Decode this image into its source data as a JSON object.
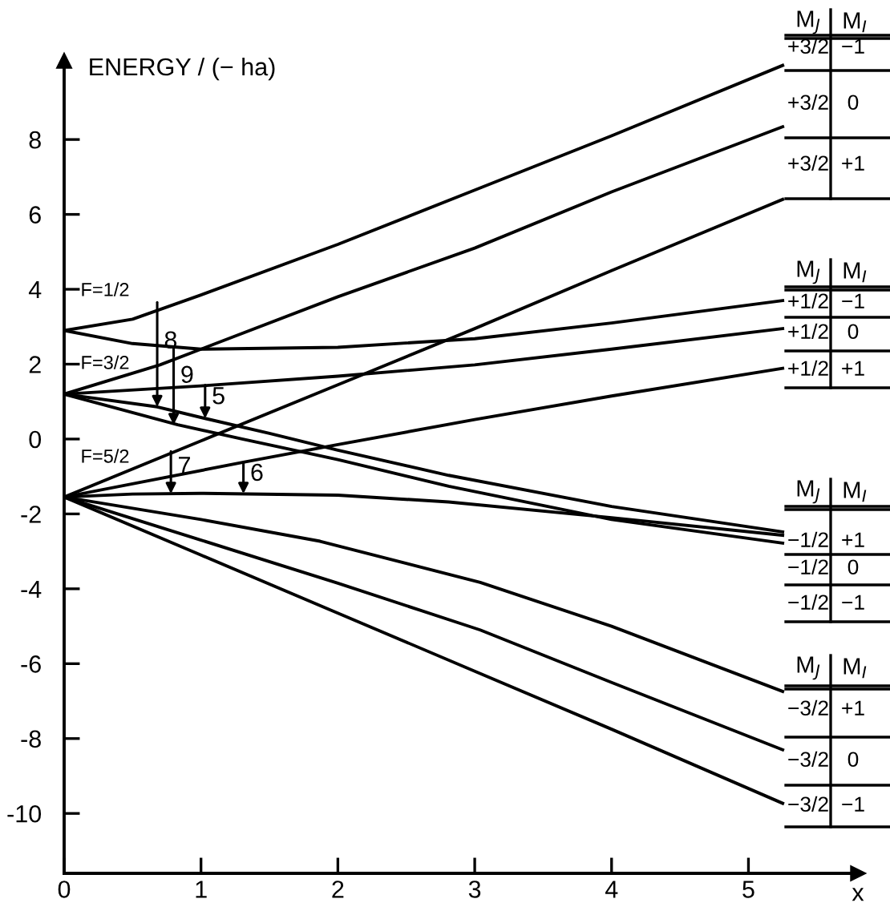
{
  "chart_data": {
    "type": "line",
    "ylabel": "ENERGY / (− ha)",
    "xlabel": "x",
    "xlim": [
      0,
      5.8
    ],
    "ylim": [
      -11.6,
      10.1
    ],
    "xticks": [
      0,
      1,
      2,
      3,
      4,
      5
    ],
    "yticks": [
      -10,
      -8,
      -6,
      -4,
      -2,
      0,
      2,
      4,
      6,
      8
    ],
    "series": [
      {
        "color": "#000000",
        "x": [
          0,
          0.5,
          1,
          2,
          3,
          4,
          5.25
        ],
        "values": [
          2.9,
          3.2,
          3.85,
          5.2,
          6.65,
          8.1,
          9.98
        ]
      },
      {
        "color": "#000000",
        "x": [
          0,
          0.7,
          2,
          3,
          4,
          5.25
        ],
        "values": [
          1.2,
          1.98,
          3.8,
          5.1,
          6.6,
          8.34
        ]
      },
      {
        "color": "#000000",
        "x": [
          0,
          1,
          2,
          3,
          4,
          5.25
        ],
        "values": [
          -1.55,
          -0.05,
          1.45,
          2.95,
          4.5,
          6.4
        ]
      },
      {
        "color": "#000000",
        "x": [
          0,
          0.5,
          1,
          2,
          3,
          4,
          5.25
        ],
        "values": [
          2.9,
          2.55,
          2.4,
          2.45,
          2.68,
          3.1,
          3.7
        ]
      },
      {
        "color": "#000000",
        "x": [
          0,
          1,
          2,
          3,
          4,
          5.25
        ],
        "values": [
          1.2,
          1.42,
          1.68,
          1.98,
          2.4,
          2.95
        ]
      },
      {
        "color": "#000000",
        "x": [
          0,
          1.31,
          2,
          3,
          4,
          5.25
        ],
        "values": [
          -1.55,
          -0.62,
          -0.15,
          0.52,
          1.15,
          1.89
        ]
      },
      {
        "color": "#000000",
        "x": [
          0,
          0.68,
          1.03,
          1.5,
          2,
          2.81,
          4,
          5.25
        ],
        "values": [
          1.2,
          0.86,
          0.55,
          0.15,
          -0.3,
          -0.97,
          -1.8,
          -2.48
        ]
      },
      {
        "color": "#000000",
        "x": [
          0,
          0.5,
          1,
          2,
          2.81,
          4,
          5.25
        ],
        "values": [
          -1.55,
          -1.47,
          -1.45,
          -1.5,
          -1.68,
          -2.1,
          -2.57
        ]
      },
      {
        "color": "#000000",
        "x": [
          0,
          0.83,
          1.3,
          2,
          2.81,
          4,
          5.25
        ],
        "values": [
          1.2,
          0.38,
          0.0,
          -0.55,
          -1.26,
          -2.15,
          -2.78
        ]
      },
      {
        "color": "#000000",
        "x": [
          0,
          1,
          1.87,
          3.04,
          4,
          5.25
        ],
        "values": [
          -1.55,
          -2.15,
          -2.73,
          -3.83,
          -5.0,
          -6.74
        ]
      },
      {
        "color": "#000000",
        "x": [
          0,
          1,
          2,
          3.04,
          4,
          5.25
        ],
        "values": [
          -1.55,
          -2.7,
          -3.85,
          -5.1,
          -6.5,
          -8.3
        ]
      },
      {
        "color": "#000000",
        "x": [
          0,
          1,
          2,
          3,
          4,
          5.25
        ],
        "values": [
          -1.55,
          -3.1,
          -4.65,
          -6.2,
          -7.75,
          -9.73
        ]
      }
    ],
    "annotations": [
      "F=1/2",
      "F=3/2",
      "F=5/2",
      {
        "text": "8",
        "x": 0.68,
        "y": 0.86
      },
      {
        "text": "9",
        "x": 0.8,
        "y": 0.38
      },
      {
        "text": "5",
        "x": 1.03,
        "y": 0.55
      },
      {
        "text": "7",
        "x": 0.78,
        "y": -1.46
      },
      {
        "text": "6",
        "x": 1.31,
        "y": -1.46
      },
      "M$_{J}$",
      "M$_{I}$",
      "+3/2",
      "−1",
      "+3/2",
      "0",
      "+3/2",
      "+1",
      "M$_{J}$",
      "M$_{I}$",
      "+1/2",
      "−1",
      "+1/2",
      "0",
      "+1/2",
      "+1",
      "M$_{J}$",
      "M$_{I}$",
      "−1/2",
      "+1",
      "−1/2",
      "0",
      "−1/2",
      "−1",
      "M$_{J}$",
      "M$_{I}$",
      "−3/2",
      "+1",
      "−3/2",
      "0",
      "−3/2",
      "−1"
    ]
  }
}
